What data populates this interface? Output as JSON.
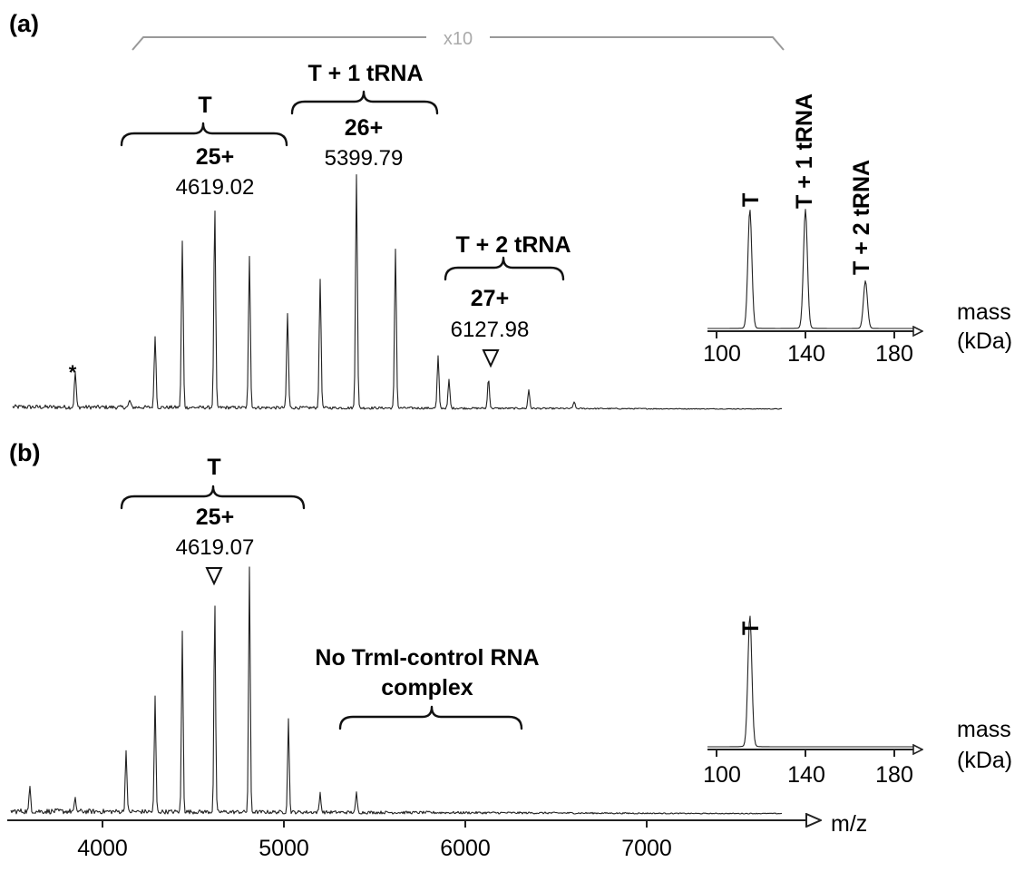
{
  "panels": [
    {
      "label": "(a)",
      "scale_marker": "x10",
      "star_marker": "*",
      "annotations": [
        {
          "group": "T",
          "charge": "25+",
          "mz": "4619.02"
        },
        {
          "group": "T + 1 tRNA",
          "charge": "26+",
          "mz": "5399.79"
        },
        {
          "group": "T + 2 tRNA",
          "charge": "27+",
          "mz": "6127.98"
        }
      ],
      "inset": {
        "peak_labels": [
          "T",
          "T + 1 tRNA",
          "T + 2 tRNA"
        ],
        "ticks": [
          "100",
          "140",
          "180"
        ],
        "axis_label_line1": "mass",
        "axis_label_line2": "(kDa)"
      }
    },
    {
      "label": "(b)",
      "annotations": [
        {
          "group": "T",
          "charge": "25+",
          "mz": "4619.07"
        }
      ],
      "note_line1": "No TrmI-control RNA",
      "note_line2": "complex",
      "inset": {
        "peak_labels": [
          "T"
        ],
        "ticks": [
          "100",
          "140",
          "180"
        ],
        "axis_label_line1": "mass",
        "axis_label_line2": "(kDa)"
      }
    }
  ],
  "x_axis": {
    "label": "m/z",
    "ticks": [
      "4000",
      "5000",
      "6000",
      "7000"
    ]
  },
  "chart_data": [
    {
      "type": "line",
      "title": "(a)",
      "xlabel": "m/z",
      "xlim": [
        3500,
        7750
      ],
      "ylim": [
        0,
        100
      ],
      "peaks": [
        {
          "x": 3850,
          "y": 15
        },
        {
          "x": 4150,
          "y": 3
        },
        {
          "x": 4290,
          "y": 31
        },
        {
          "x": 4440,
          "y": 71
        },
        {
          "x": 4619,
          "y": 85
        },
        {
          "x": 4810,
          "y": 65
        },
        {
          "x": 5020,
          "y": 40
        },
        {
          "x": 5200,
          "y": 55
        },
        {
          "x": 5400,
          "y": 100
        },
        {
          "x": 5615,
          "y": 68
        },
        {
          "x": 5850,
          "y": 22
        },
        {
          "x": 5910,
          "y": 12
        },
        {
          "x": 6128,
          "y": 13
        },
        {
          "x": 6350,
          "y": 8
        },
        {
          "x": 6600,
          "y": 3
        }
      ],
      "inset": {
        "type": "line",
        "xlabel": "mass (kDa)",
        "xlim": [
          95,
          200
        ],
        "x_ticks": [
          100,
          140,
          180
        ],
        "peaks": [
          {
            "x": 115,
            "y": 100,
            "label": "T"
          },
          {
            "x": 140,
            "y": 100,
            "label": "T + 1 tRNA"
          },
          {
            "x": 167,
            "y": 40,
            "label": "T + 2 tRNA"
          }
        ]
      }
    },
    {
      "type": "line",
      "title": "(b)",
      "xlabel": "m/z",
      "xlim": [
        3500,
        7750
      ],
      "x_ticks": [
        4000,
        5000,
        6000,
        7000
      ],
      "ylim": [
        0,
        100
      ],
      "peaks": [
        {
          "x": 3600,
          "y": 10
        },
        {
          "x": 3850,
          "y": 5
        },
        {
          "x": 4130,
          "y": 26
        },
        {
          "x": 4290,
          "y": 47
        },
        {
          "x": 4440,
          "y": 74
        },
        {
          "x": 4619,
          "y": 86
        },
        {
          "x": 4810,
          "y": 100
        },
        {
          "x": 5025,
          "y": 38
        },
        {
          "x": 5200,
          "y": 8
        },
        {
          "x": 5400,
          "y": 8
        }
      ],
      "inset": {
        "type": "line",
        "xlabel": "mass (kDa)",
        "xlim": [
          95,
          200
        ],
        "x_ticks": [
          100,
          140,
          180
        ],
        "peaks": [
          {
            "x": 115,
            "y": 100,
            "label": "T"
          }
        ]
      }
    }
  ]
}
